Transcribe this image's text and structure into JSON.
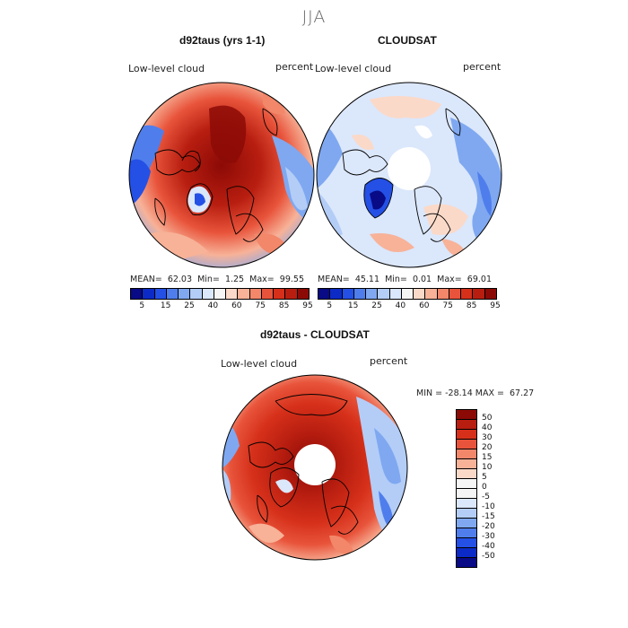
{
  "figure": {
    "season": "JJA",
    "units": "percent",
    "variable_label": "Low-level cloud"
  },
  "panels": [
    {
      "id": "model",
      "title": "d92taus (yrs 1-1)",
      "variable": "Low-level cloud",
      "units": "percent",
      "stats": {
        "mean": "62.03",
        "min": "1.25",
        "max": "99.55"
      },
      "dominant": "warm-red"
    },
    {
      "id": "obs",
      "title": "CLOUDSAT",
      "variable": "Low-level cloud",
      "units": "percent",
      "stats": {
        "mean": "45.11",
        "min": "0.01",
        "max": "69.01"
      },
      "dominant": "mixed-neutral"
    },
    {
      "id": "diff",
      "title": "d92taus - CLOUDSAT",
      "variable": "Low-level cloud",
      "units": "percent",
      "stats": {
        "min": "-28.14",
        "max": "67.27"
      },
      "dominant": "warm-red"
    }
  ],
  "colorbar_abs": {
    "tick_labels": [
      "5",
      "15",
      "25",
      "40",
      "60",
      "75",
      "85",
      "95"
    ],
    "colors": [
      "#080a86",
      "#0c2bc6",
      "#2450e6",
      "#4f7eec",
      "#7fa8f1",
      "#b3cdf7",
      "#dbe7fb",
      "#f5f5f5",
      "#fbd9c8",
      "#f7b298",
      "#f2876a",
      "#e8543b",
      "#d6301a",
      "#b81e10",
      "#8c0a06"
    ]
  },
  "colorbar_diff": {
    "tick_labels": [
      "50",
      "40",
      "30",
      "20",
      "15",
      "10",
      "5",
      "0",
      "-5",
      "-10",
      "-15",
      "-20",
      "-30",
      "-40",
      "-50"
    ],
    "colors": [
      "#8c0a06",
      "#b81e10",
      "#d6301a",
      "#e8543b",
      "#f2876a",
      "#f7b298",
      "#fbd9c8",
      "#f5f5f5",
      "#f5f5f5",
      "#dbe7fb",
      "#b3cdf7",
      "#7fa8f1",
      "#4f7eec",
      "#2450e6",
      "#0c2bc6",
      "#080a86"
    ]
  },
  "labels": {
    "mean": "MEAN=",
    "min": "Min=",
    "max": "Max=",
    "diff_min": "MIN =",
    "diff_max": "MAX ="
  }
}
